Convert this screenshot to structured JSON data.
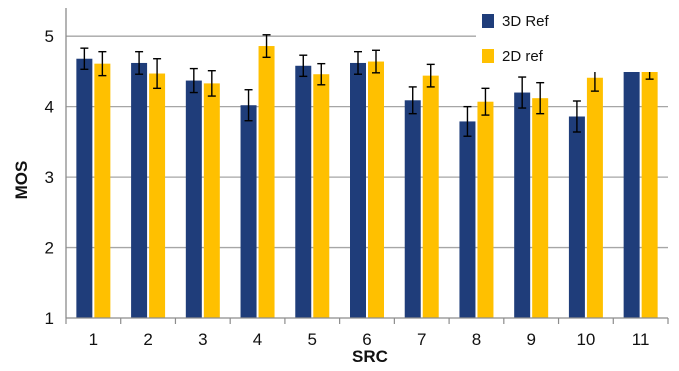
{
  "chart_data": {
    "type": "bar",
    "title": "",
    "xlabel": "SRC",
    "ylabel": "MOS",
    "ylim": [
      1,
      5.4
    ],
    "yticks": [
      1,
      2,
      3,
      4,
      5
    ],
    "grid": true,
    "legend_position": "top-right",
    "categories": [
      "1",
      "2",
      "3",
      "4",
      "5",
      "6",
      "7",
      "8",
      "9",
      "10",
      "11"
    ],
    "series": [
      {
        "name": "3D Ref",
        "color": "#1f3d7a",
        "values": [
          4.68,
          4.62,
          4.37,
          4.02,
          4.58,
          4.62,
          4.09,
          3.79,
          4.2,
          3.86,
          4.69
        ],
        "errors": [
          0.15,
          0.16,
          0.17,
          0.22,
          0.15,
          0.16,
          0.19,
          0.21,
          0.22,
          0.22,
          0.16
        ]
      },
      {
        "name": "2D ref",
        "color": "#ffc000",
        "values": [
          4.61,
          4.47,
          4.33,
          4.86,
          4.46,
          4.64,
          4.44,
          4.07,
          4.12,
          4.41,
          4.58
        ],
        "errors": [
          0.17,
          0.21,
          0.18,
          0.16,
          0.15,
          0.16,
          0.16,
          0.19,
          0.22,
          0.19,
          0.19
        ]
      }
    ]
  }
}
